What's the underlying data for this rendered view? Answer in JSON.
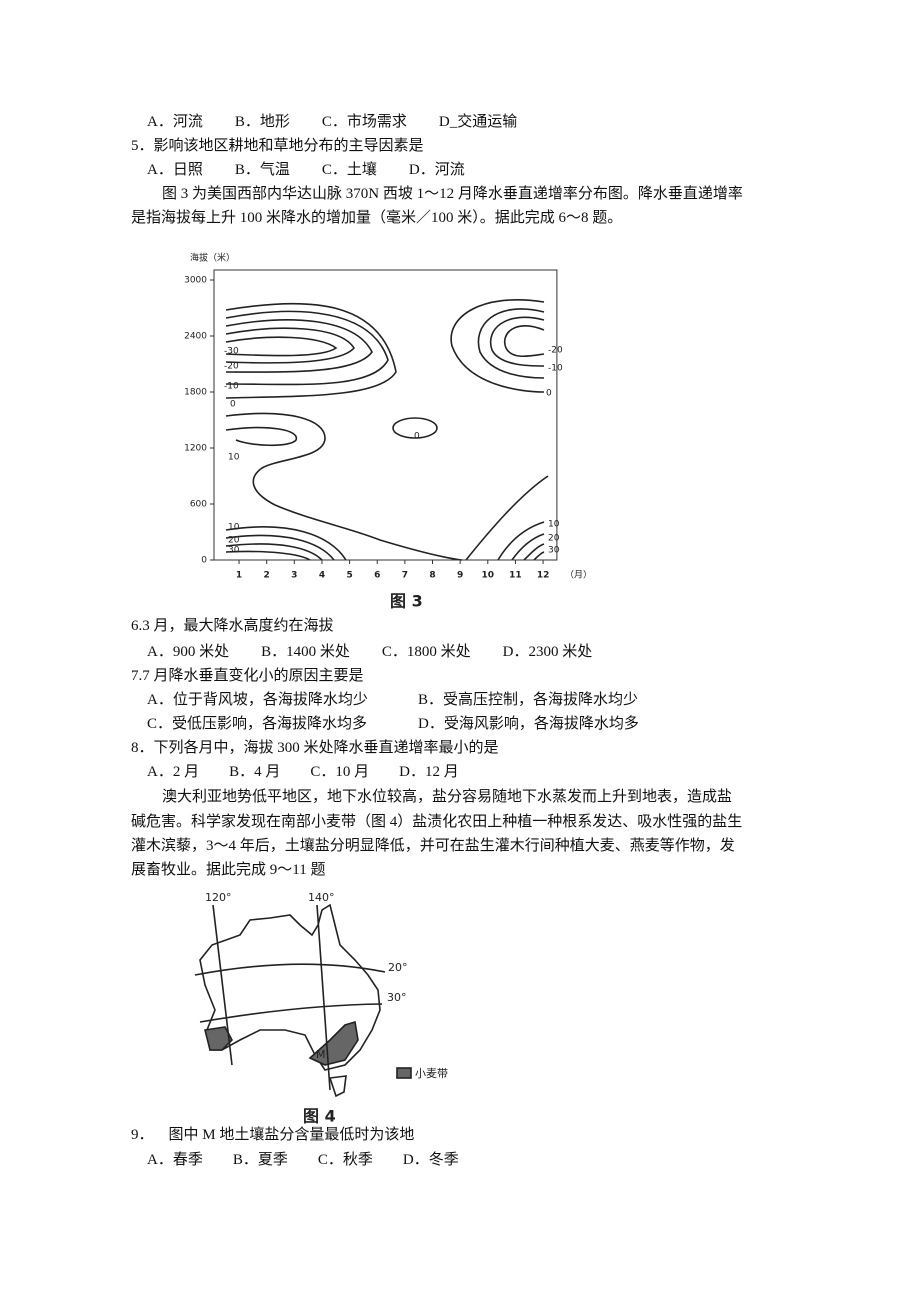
{
  "q4_options": [
    "A．河流",
    "B．地形",
    "C．市场需求",
    "D_交通运输"
  ],
  "q5": {
    "stem": "5．影响该地区耕地和草地分布的主导因素是",
    "options": [
      "A．日照",
      "B．气温",
      "C．土壤",
      "D．河流"
    ]
  },
  "intro_6_8": [
    "图 3 为美国西部内华达山脉 370N 西坡 1～12 月降水垂直递增率分布图。降水垂直递增率",
    "是指海拔每上升 100 米降水的增加量（毫米／100 米）。据此完成 6～8 题。"
  ],
  "figure3": {
    "y_axis_label": "海拔（米）",
    "x_unit": "（月）",
    "ylim": [
      0,
      3000
    ],
    "yticks": [
      0,
      600,
      1200,
      1800,
      2400,
      3000
    ],
    "xlim": [
      0,
      12.5
    ],
    "xticks": [
      1,
      2,
      3,
      4,
      5,
      6,
      7,
      8,
      9,
      10,
      11,
      12
    ],
    "contour_labels": [
      "-30",
      "-20",
      "-10",
      "0",
      "10",
      "0",
      "-20",
      "-10",
      "0",
      "10",
      "20",
      "30",
      "10",
      "20",
      "30"
    ],
    "caption": "图 3"
  },
  "q6": {
    "stem": "6.3 月，最大降水高度约在海拔",
    "options": [
      "A．900 米处",
      "B．1400 米处",
      "C．1800 米处",
      "D．2300 米处"
    ]
  },
  "q7": {
    "stem": "7.7 月降水垂直变化小的原因主要是",
    "options": [
      "A．位于背风坡，各海拔降水均少",
      "B．受高压控制，各海拔降水均少",
      "C．受低压影响，各海拔降水均多",
      "D．受海风影响，各海拔降水均多"
    ]
  },
  "q8": {
    "stem": "8．下列各月中，海拔 300 米处降水垂直递增率最小的是",
    "options": [
      "A．2 月",
      "B．4 月",
      "C．10 月",
      "D．12 月"
    ]
  },
  "intro_9_11": [
    "澳大利亚地势低平地区，地下水位较高，盐分容易随地下水蒸发而上升到地表，造成盐",
    "碱危害。科学家发现在南部小麦带（图 4）盐渍化农田上种植一种根系发达、吸水性强的盐生",
    "灌木滨藜，3～4 年后，土壤盐分明显降低，并可在盐生灌木行间种植大麦、燕麦等作物，发",
    "展畜牧业。据此完成 9～11 题"
  ],
  "figure4": {
    "lon120": "120°",
    "lon140": "140°",
    "lat20": "20°",
    "lat30": "30°",
    "point": "M",
    "legend": "小麦带",
    "caption": "图 4"
  },
  "q9": {
    "stem": "9．    图中 M 地土壤盐分含量最低时为该地",
    "options": [
      "A．春季",
      "B．夏季",
      "C．秋季",
      "D．冬季"
    ]
  }
}
